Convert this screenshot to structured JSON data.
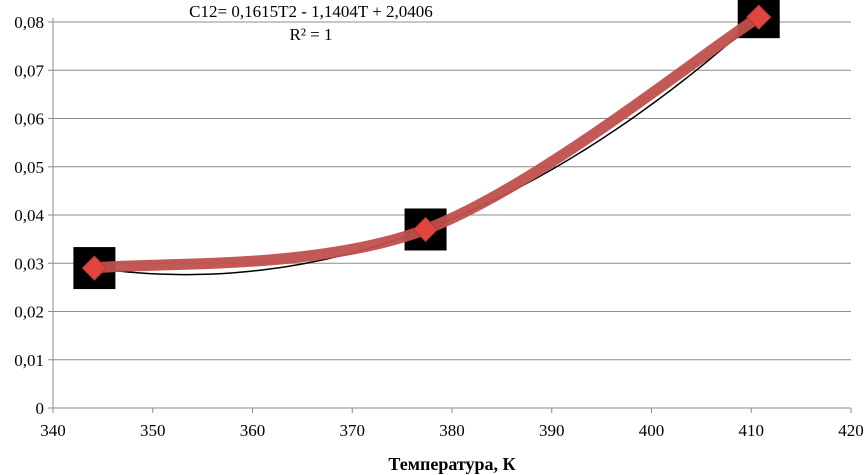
{
  "chart_data": {
    "type": "scatter",
    "xlabel": "Температура, К",
    "ylabel": "",
    "xlim": [
      340,
      420
    ],
    "ylim": [
      0,
      0.08
    ],
    "x_ticks": [
      340,
      350,
      360,
      370,
      380,
      390,
      400,
      410,
      420
    ],
    "x_tick_labels": [
      "340",
      "350",
      "360",
      "370",
      "380",
      "390",
      "400",
      "410",
      "420"
    ],
    "y_ticks": [
      0,
      0.01,
      0.02,
      0.03,
      0.04,
      0.05,
      0.06,
      0.07,
      0.08
    ],
    "y_tick_labels": [
      "0",
      "0,01",
      "0,02",
      "0,03",
      "0,04",
      "0,05",
      "0,06",
      "0,07",
      "0,08"
    ],
    "grid": "horizontal",
    "series": [
      {
        "x": [
          344.15,
          377.35,
          410.75
        ],
        "y": [
          0.029,
          0.037,
          0.081
        ],
        "marker": "diamond",
        "marker_color": "#e0453f",
        "line_color": "#c0504d"
      }
    ],
    "trendline": {
      "type": "polynomial",
      "equation": "C12= 0,1615T2 - 1,1404T + 2,0406",
      "r_squared_label": "R² = 1",
      "color": "#000000"
    }
  }
}
